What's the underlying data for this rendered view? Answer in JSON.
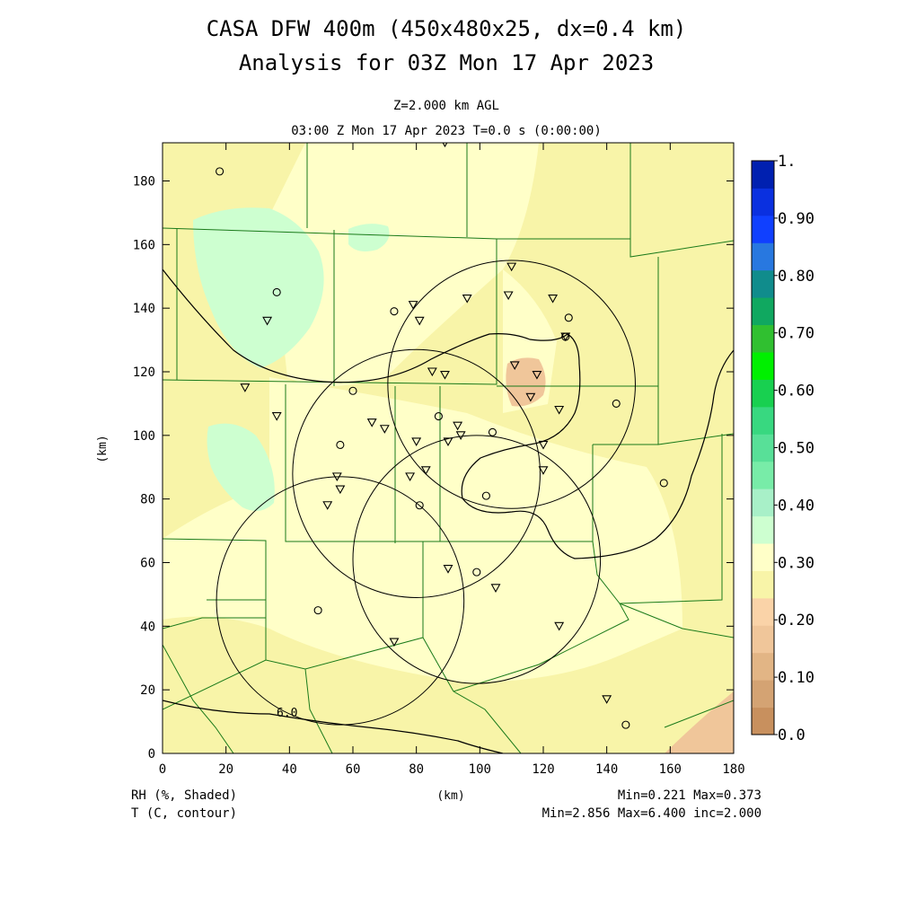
{
  "title": {
    "line1": "CASA DFW 400m (450x480x25, dx=0.4 km)",
    "line2": "Analysis for 03Z Mon 17 Apr 2023"
  },
  "subtitle": {
    "level": "Z=2.000 km AGL",
    "time": "03:00 Z Mon 17 Apr 2023    T=0.0 s (0:00:00)"
  },
  "axes": {
    "xlabel": "(km)",
    "ylabel": "(km)",
    "xticks": [
      "0",
      "20",
      "40",
      "60",
      "80",
      "100",
      "120",
      "140",
      "160",
      "180"
    ],
    "yticks": [
      "0",
      "20",
      "40",
      "60",
      "80",
      "100",
      "120",
      "140",
      "160",
      "180"
    ],
    "xlim": [
      0,
      180
    ],
    "ylim": [
      0,
      192
    ]
  },
  "colorbar": {
    "labels": [
      "0.0",
      "0.10",
      "0.20",
      "0.30",
      "0.40",
      "0.50",
      "0.60",
      "0.70",
      "0.80",
      "0.90",
      "1."
    ],
    "colors": [
      "#c8905e",
      "#d4a373",
      "#e2b585",
      "#f0c69a",
      "#fad3a8",
      "#f8f4a8",
      "#ffffc8",
      "#cdffd0",
      "#a8f0c8",
      "#78eca8",
      "#58e098",
      "#38d880",
      "#18d050",
      "#00f000",
      "#30c030",
      "#10a860",
      "#108c8c",
      "#2878e0",
      "#1040ff",
      "#0a30e0",
      "#0020b0"
    ]
  },
  "footer": {
    "left1": "RH (%, Shaded)",
    "left2": "T (C, contour)",
    "center": "(km)",
    "right1": "Min=0.221  Max=0.373",
    "right2": "Min=2.856  Max=6.400  inc=2.000"
  },
  "contour_label": "6.0",
  "chart_data": {
    "type": "heatmap",
    "shaded_field": "RH",
    "contour_field": "T",
    "shaded_min": 0.221,
    "shaded_max": 0.373,
    "contour_min": 2.856,
    "contour_max": 6.4,
    "contour_inc": 2.0,
    "radars": [
      {
        "cx": 110,
        "cy": 116,
        "r": 39
      },
      {
        "cx": 80,
        "cy": 88,
        "r": 39
      },
      {
        "cx": 56,
        "cy": 48,
        "r": 39
      },
      {
        "cx": 99,
        "cy": 61,
        "r": 39
      }
    ],
    "triangles": [
      [
        89,
        192
      ],
      [
        110,
        153
      ],
      [
        109,
        144
      ],
      [
        123,
        143
      ],
      [
        96,
        143
      ],
      [
        79,
        141
      ],
      [
        81,
        136
      ],
      [
        33,
        136
      ],
      [
        127,
        131
      ],
      [
        111,
        122
      ],
      [
        85,
        120
      ],
      [
        89,
        119
      ],
      [
        118,
        119
      ],
      [
        116,
        112
      ],
      [
        125,
        108
      ],
      [
        26,
        115
      ],
      [
        36,
        106
      ],
      [
        66,
        104
      ],
      [
        70,
        102
      ],
      [
        93,
        103
      ],
      [
        94,
        100
      ],
      [
        80,
        98
      ],
      [
        90,
        98
      ],
      [
        120,
        97
      ],
      [
        83,
        89
      ],
      [
        120,
        89
      ],
      [
        78,
        87
      ],
      [
        55,
        87
      ],
      [
        56,
        83
      ],
      [
        52,
        78
      ],
      [
        90,
        58
      ],
      [
        105,
        52
      ],
      [
        125,
        40
      ],
      [
        73,
        35
      ],
      [
        140,
        17
      ]
    ],
    "circles": [
      [
        18,
        183
      ],
      [
        36,
        145
      ],
      [
        73,
        139
      ],
      [
        128,
        137
      ],
      [
        127,
        131
      ],
      [
        60,
        114
      ],
      [
        143,
        110
      ],
      [
        87,
        106
      ],
      [
        56,
        97
      ],
      [
        104,
        101
      ],
      [
        102,
        81
      ],
      [
        81,
        78
      ],
      [
        158,
        85
      ],
      [
        99,
        57
      ],
      [
        49,
        45
      ],
      [
        146,
        9
      ]
    ]
  }
}
